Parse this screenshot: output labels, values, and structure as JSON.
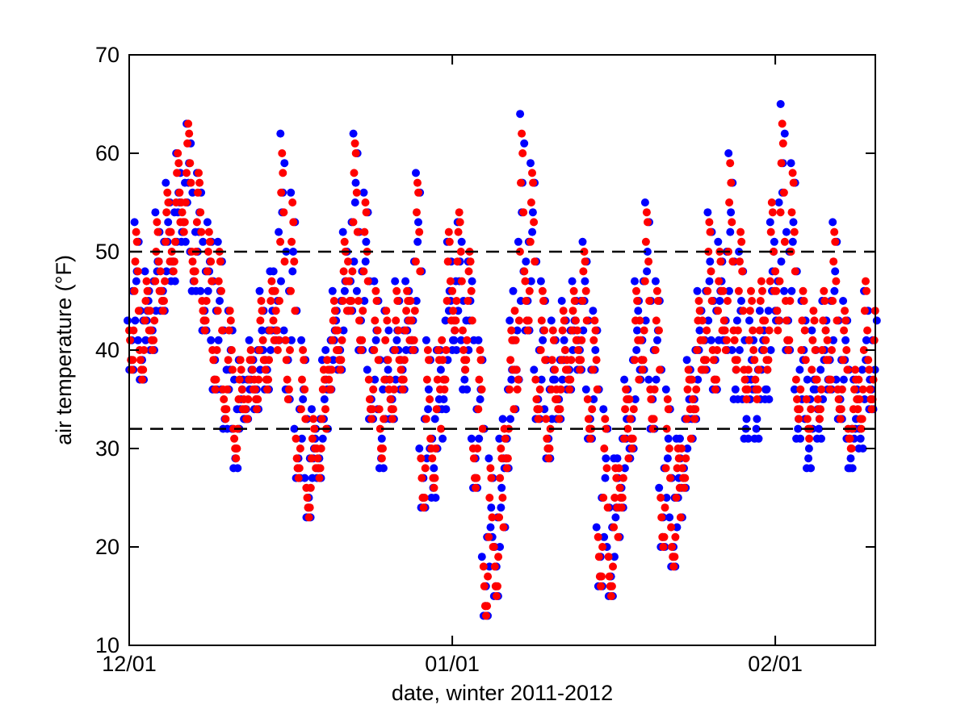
{
  "chart_data": {
    "type": "scatter",
    "title": "",
    "xlabel": "date, winter 2011-2012",
    "ylabel": "air temperature (°F)",
    "ylim": [
      10,
      70
    ],
    "xlim_days": [
      0,
      71.6
    ],
    "y_ticks": [
      10,
      20,
      30,
      40,
      50,
      60,
      70
    ],
    "x_ticks": [
      {
        "day": 0,
        "label": "12/01"
      },
      {
        "day": 31,
        "label": "01/01"
      },
      {
        "day": 62,
        "label": "02/01"
      }
    ],
    "grid": "off",
    "legend": "none",
    "axis_color": "#000000",
    "background_color": "#ffffff",
    "reference_lines": [
      {
        "y": 50,
        "style": "dashed",
        "color": "#000000"
      },
      {
        "y": 32,
        "style": "dashed",
        "color": "#000000"
      }
    ],
    "series": [
      {
        "name": "blue",
        "color": "#0000ff",
        "draw_order": 1
      },
      {
        "name": "red",
        "color": "#ff0000",
        "draw_order": 2
      }
    ],
    "samples_per_day": 12,
    "diurnal_shape": [
      0.3,
      0.18,
      0.08,
      0.0,
      0.05,
      0.25,
      0.55,
      0.8,
      1.0,
      0.92,
      0.68,
      0.45
    ],
    "blue_sample_offset": [
      1,
      0,
      -1,
      0,
      0,
      1,
      0,
      -1,
      1,
      0,
      -1,
      0
    ],
    "daily": [
      {
        "date": "12/01",
        "lo": 38,
        "hi": 52,
        "blue_delta": 0
      },
      {
        "date": "12/02",
        "lo": 37,
        "hi": 47,
        "blue_delta": 0
      },
      {
        "date": "12/03",
        "lo": 40,
        "hi": 53,
        "blue_delta": 0
      },
      {
        "date": "12/04",
        "lo": 44,
        "hi": 56,
        "blue_delta": 0
      },
      {
        "date": "12/05",
        "lo": 48,
        "hi": 60,
        "blue_delta": -1
      },
      {
        "date": "12/06",
        "lo": 52,
        "hi": 63,
        "blue_delta": -1
      },
      {
        "date": "12/07",
        "lo": 47,
        "hi": 58,
        "blue_delta": -1
      },
      {
        "date": "12/08",
        "lo": 42,
        "hi": 52,
        "blue_delta": 0
      },
      {
        "date": "12/09",
        "lo": 36,
        "hi": 50,
        "blue_delta": 0
      },
      {
        "date": "12/10",
        "lo": 33,
        "hi": 44,
        "blue_delta": -1
      },
      {
        "date": "12/11",
        "lo": 29,
        "hi": 39,
        "blue_delta": -1
      },
      {
        "date": "12/12",
        "lo": 33,
        "hi": 40,
        "blue_delta": 0
      },
      {
        "date": "12/13",
        "lo": 34,
        "hi": 45,
        "blue_delta": 0
      },
      {
        "date": "12/14",
        "lo": 36,
        "hi": 47,
        "blue_delta": 0
      },
      {
        "date": "12/15",
        "lo": 40,
        "hi": 60,
        "blue_delta": 1
      },
      {
        "date": "12/16",
        "lo": 35,
        "hi": 55,
        "blue_delta": 0
      },
      {
        "date": "12/17",
        "lo": 27,
        "hi": 40,
        "blue_delta": 0
      },
      {
        "date": "12/18",
        "lo": 23,
        "hi": 33,
        "blue_delta": 0
      },
      {
        "date": "12/19",
        "lo": 27,
        "hi": 38,
        "blue_delta": 0
      },
      {
        "date": "12/20",
        "lo": 36,
        "hi": 45,
        "blue_delta": 0
      },
      {
        "date": "12/21",
        "lo": 38,
        "hi": 51,
        "blue_delta": 0
      },
      {
        "date": "12/22",
        "lo": 44,
        "hi": 61,
        "blue_delta": 0
      },
      {
        "date": "12/23",
        "lo": 40,
        "hi": 55,
        "blue_delta": 0
      },
      {
        "date": "12/24",
        "lo": 33,
        "hi": 46,
        "blue_delta": 0
      },
      {
        "date": "12/25",
        "lo": 29,
        "hi": 44,
        "blue_delta": -1
      },
      {
        "date": "12/26",
        "lo": 33,
        "hi": 46,
        "blue_delta": 0
      },
      {
        "date": "12/27",
        "lo": 36,
        "hi": 46,
        "blue_delta": 0
      },
      {
        "date": "12/28",
        "lo": 40,
        "hi": 57,
        "blue_delta": 0
      },
      {
        "date": "12/29",
        "lo": 24,
        "hi": 40,
        "blue_delta": 0
      },
      {
        "date": "12/30",
        "lo": 26,
        "hi": 40,
        "blue_delta": -1
      },
      {
        "date": "12/31",
        "lo": 36,
        "hi": 52,
        "blue_delta": -2
      },
      {
        "date": "01/01",
        "lo": 42,
        "hi": 54,
        "blue_delta": -2
      },
      {
        "date": "01/02",
        "lo": 38,
        "hi": 50,
        "blue_delta": -2
      },
      {
        "date": "01/03",
        "lo": 26,
        "hi": 40,
        "blue_delta": 0
      },
      {
        "date": "01/04",
        "lo": 13,
        "hi": 28,
        "blue_delta": 0
      },
      {
        "date": "01/05",
        "lo": 15,
        "hi": 30,
        "blue_delta": 0
      },
      {
        "date": "01/06",
        "lo": 28,
        "hi": 42,
        "blue_delta": 0
      },
      {
        "date": "01/07",
        "lo": 36,
        "hi": 62,
        "blue_delta": 1
      },
      {
        "date": "01/08",
        "lo": 42,
        "hi": 58,
        "blue_delta": 0
      },
      {
        "date": "01/09",
        "lo": 33,
        "hi": 46,
        "blue_delta": 0
      },
      {
        "date": "01/10",
        "lo": 29,
        "hi": 42,
        "blue_delta": 0
      },
      {
        "date": "01/11",
        "lo": 33,
        "hi": 44,
        "blue_delta": 0
      },
      {
        "date": "01/12",
        "lo": 36,
        "hi": 46,
        "blue_delta": 0
      },
      {
        "date": "01/13",
        "lo": 38,
        "hi": 50,
        "blue_delta": 0
      },
      {
        "date": "01/14",
        "lo": 31,
        "hi": 43,
        "blue_delta": 0
      },
      {
        "date": "01/15",
        "lo": 16,
        "hi": 33,
        "blue_delta": 0
      },
      {
        "date": "01/16",
        "lo": 15,
        "hi": 28,
        "blue_delta": 0
      },
      {
        "date": "01/17",
        "lo": 24,
        "hi": 36,
        "blue_delta": 0
      },
      {
        "date": "01/18",
        "lo": 30,
        "hi": 46,
        "blue_delta": 0
      },
      {
        "date": "01/19",
        "lo": 38,
        "hi": 54,
        "blue_delta": 0
      },
      {
        "date": "01/20",
        "lo": 32,
        "hi": 46,
        "blue_delta": 0
      },
      {
        "date": "01/21",
        "lo": 20,
        "hi": 35,
        "blue_delta": 0
      },
      {
        "date": "01/22",
        "lo": 18,
        "hi": 30,
        "blue_delta": 0
      },
      {
        "date": "01/23",
        "lo": 26,
        "hi": 38,
        "blue_delta": 0
      },
      {
        "date": "01/24",
        "lo": 33,
        "hi": 45,
        "blue_delta": 0
      },
      {
        "date": "01/25",
        "lo": 38,
        "hi": 53,
        "blue_delta": 0
      },
      {
        "date": "01/26",
        "lo": 36,
        "hi": 50,
        "blue_delta": 0
      },
      {
        "date": "01/27",
        "lo": 40,
        "hi": 59,
        "blue_delta": 0
      },
      {
        "date": "01/28",
        "lo": 38,
        "hi": 52,
        "blue_delta": -3
      },
      {
        "date": "01/29",
        "lo": 35,
        "hi": 46,
        "blue_delta": -4
      },
      {
        "date": "01/30",
        "lo": 35,
        "hi": 47,
        "blue_delta": -4
      },
      {
        "date": "01/31",
        "lo": 38,
        "hi": 55,
        "blue_delta": -3
      },
      {
        "date": "02/01",
        "lo": 42,
        "hi": 63,
        "blue_delta": 1
      },
      {
        "date": "02/02",
        "lo": 40,
        "hi": 58,
        "blue_delta": 0
      },
      {
        "date": "02/03",
        "lo": 33,
        "hi": 46,
        "blue_delta": -2
      },
      {
        "date": "02/04",
        "lo": 31,
        "hi": 44,
        "blue_delta": -3
      },
      {
        "date": "02/05",
        "lo": 33,
        "hi": 46,
        "blue_delta": -2
      },
      {
        "date": "02/06",
        "lo": 36,
        "hi": 52,
        "blue_delta": 0
      },
      {
        "date": "02/07",
        "lo": 33,
        "hi": 44,
        "blue_delta": 0
      },
      {
        "date": "02/08",
        "lo": 30,
        "hi": 38,
        "blue_delta": -2
      },
      {
        "date": "02/09",
        "lo": 32,
        "hi": 47,
        "blue_delta": -2
      },
      {
        "date": "02/10",
        "lo": 34,
        "hi": 46,
        "blue_delta": 0
      }
    ]
  }
}
